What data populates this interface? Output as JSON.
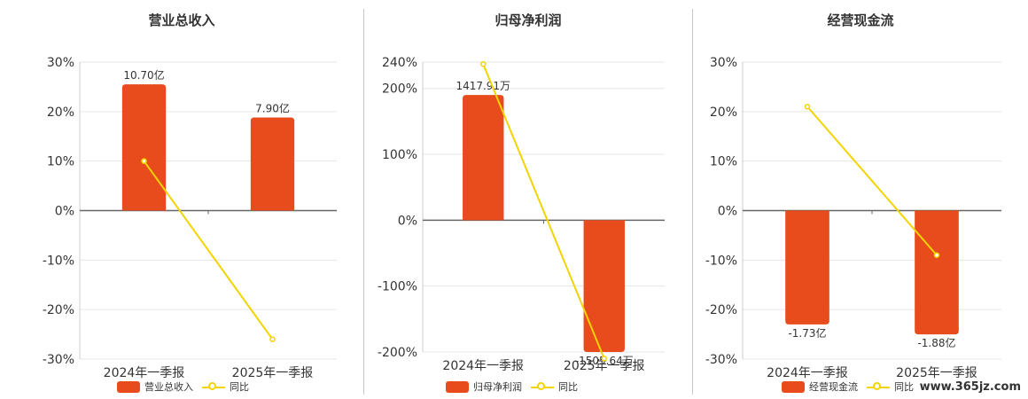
{
  "chart_data": [
    {
      "type": "bar",
      "title": "营业总收入",
      "categories": [
        "2024年一季报",
        "2025年一季报"
      ],
      "series": [
        {
          "name": "营业总收入",
          "type": "bar",
          "values": [
            25.5,
            18.8
          ],
          "labels": [
            "10.70亿",
            "7.90亿"
          ]
        },
        {
          "name": "同比",
          "type": "line",
          "values": [
            10.0,
            -26.0
          ]
        }
      ],
      "ylim": [
        -30,
        30
      ],
      "yticks": [
        "30%",
        "20%",
        "10%",
        "0%",
        "-10%",
        "-20%",
        "-30%"
      ],
      "grid": true,
      "legend": "bottom"
    },
    {
      "type": "bar",
      "title": "归母净利润",
      "categories": [
        "2024年一季报",
        "2025年一季报"
      ],
      "series": [
        {
          "name": "归母净利润",
          "type": "bar",
          "values": [
            190,
            -200
          ],
          "labels": [
            "1417.91万",
            "-1505.64万"
          ]
        },
        {
          "name": "同比",
          "type": "line",
          "values": [
            237,
            -210
          ]
        }
      ],
      "ylim": [
        -200,
        240
      ],
      "yticks": [
        "240%",
        "200%",
        "100%",
        "0%",
        "-100%",
        "-200%"
      ],
      "grid": true,
      "legend": "bottom"
    },
    {
      "type": "bar",
      "title": "经营现金流",
      "categories": [
        "2024年一季报",
        "2025年一季报"
      ],
      "series": [
        {
          "name": "经营现金流",
          "type": "bar",
          "values": [
            -23,
            -25
          ],
          "labels": [
            "-1.73亿",
            "-1.88亿"
          ]
        },
        {
          "name": "同比",
          "type": "line",
          "values": [
            21,
            -9
          ]
        }
      ],
      "ylim": [
        -30,
        30
      ],
      "yticks": [
        "30%",
        "20%",
        "10%",
        "0%",
        "-10%",
        "-20%",
        "-30%"
      ],
      "grid": true,
      "legend": "bottom"
    }
  ],
  "colors": {
    "bar": "#e84b1c",
    "line": "#f2d400",
    "grid": "#e6e6e6",
    "axis": "#666666"
  },
  "watermark": "www.365jz.com"
}
